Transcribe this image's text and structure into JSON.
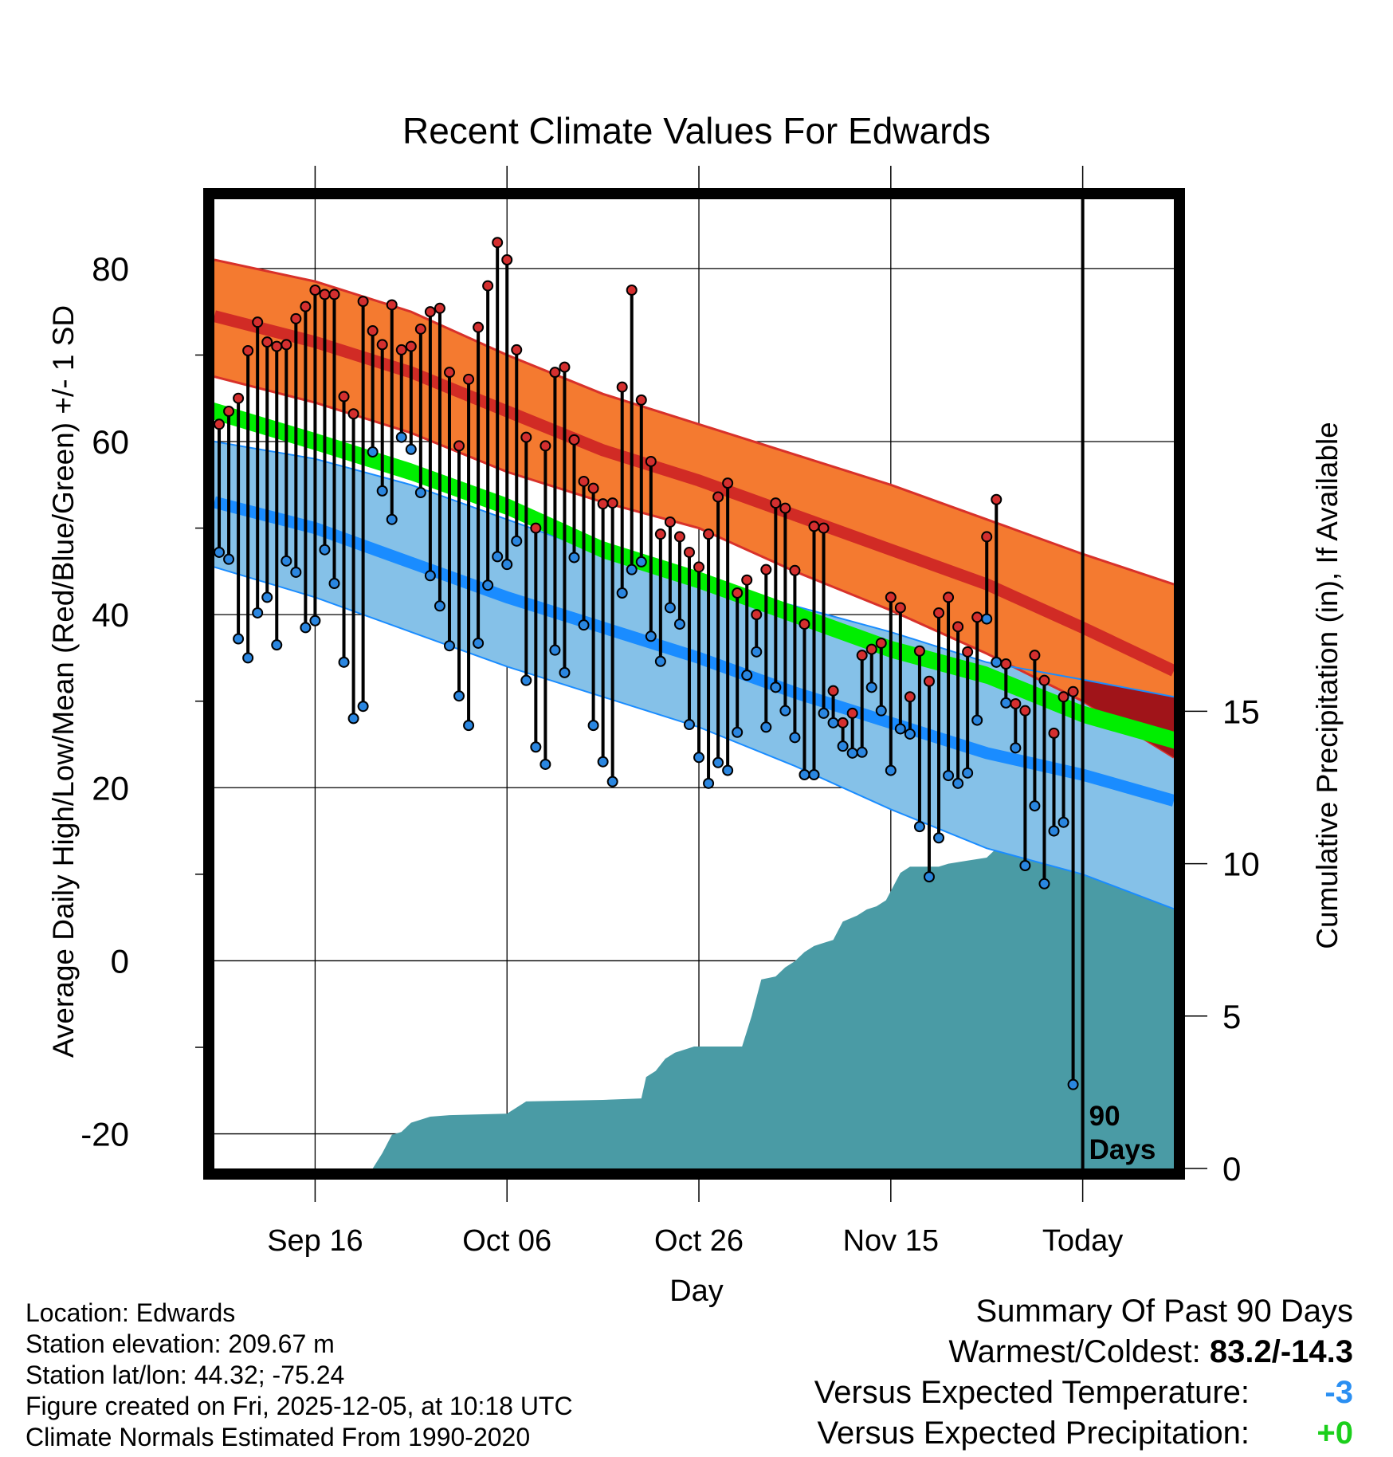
{
  "chart_data": {
    "type": "line",
    "title": "Recent Climate Values For Edwards",
    "xlabel": "Day",
    "ylabel": "Average Daily High/Low/Mean (Red/Blue/Green) +/- 1 SD",
    "y2label": "Cumulative Precipitation (in), If Available",
    "ylim": [
      -24,
      88
    ],
    "y2lim": [
      0,
      31.8
    ],
    "xlim": [
      -0.5,
      99.5
    ],
    "yticks": [
      -20,
      0,
      20,
      40,
      60,
      80
    ],
    "y2ticks": [
      0,
      5,
      10,
      15
    ],
    "xticks": [
      {
        "day": 10,
        "label": "Sep 16"
      },
      {
        "day": 30,
        "label": "Oct 06"
      },
      {
        "day": 50,
        "label": "Oct 26"
      },
      {
        "day": 70,
        "label": "Nov 15"
      },
      {
        "day": 90,
        "label": "Today"
      }
    ],
    "today_marker": {
      "day": 90,
      "label_line1": "90",
      "label_line2": "Days"
    },
    "normals": {
      "days": [
        -0.5,
        10,
        20,
        30,
        40,
        50,
        60,
        70,
        80,
        90,
        99.5
      ],
      "high_upper": [
        81,
        78.5,
        75,
        70,
        65.5,
        62,
        58.5,
        55,
        51,
        47,
        43.5
      ],
      "high_mean": [
        74.5,
        71.5,
        68,
        63.5,
        59,
        55.5,
        51.5,
        47.5,
        43.5,
        38.5,
        33.5
      ],
      "high_lower": [
        67.5,
        64.5,
        61,
        56.5,
        53,
        50,
        45,
        40.5,
        35.5,
        30,
        23.5
      ],
      "mean_upper": [
        64.5,
        61,
        57.5,
        53.5,
        48.5,
        45,
        41,
        37,
        34,
        29.5,
        26.5
      ],
      "mean_lower": [
        62.5,
        59,
        55.5,
        51.5,
        46.5,
        43,
        39,
        35,
        32,
        27.5,
        24.5
      ],
      "low_upper": [
        60,
        58,
        55,
        51,
        47,
        44,
        41,
        38,
        34.5,
        32.5,
        30.5
      ],
      "low_mean": [
        53,
        50,
        46,
        42,
        38.5,
        35,
        31,
        27.5,
        24,
        21.5,
        18.5
      ],
      "low_lower": [
        45.5,
        42,
        38,
        34,
        30.5,
        27,
        22.5,
        17.5,
        13,
        10,
        6
      ]
    },
    "daily_highs": [
      62,
      63.5,
      65,
      70.5,
      73.8,
      71.5,
      71,
      71.2,
      74.2,
      75.6,
      77.5,
      77,
      77,
      65.2,
      63.2,
      76.2,
      72.8,
      71.2,
      75.8,
      70.6,
      71,
      73,
      75,
      75.4,
      68,
      59.5,
      67.2,
      73.2,
      78,
      83,
      81,
      70.6,
      60.5,
      50,
      59.5,
      68,
      68.6,
      60.2,
      55.4,
      54.6,
      52.8,
      52.9,
      66.3,
      77.5,
      64.8,
      57.7,
      49.3,
      50.7,
      49,
      47.2,
      45.5,
      49.3,
      53.6,
      55.2,
      42.5,
      44,
      40,
      45.2,
      52.9,
      52.3,
      45.1,
      38.9,
      50.2,
      50,
      31.2,
      27.5,
      28.6,
      35.3,
      36,
      36.7,
      42,
      40.8,
      30.5,
      35.8,
      32.3,
      40.2,
      42,
      38.6,
      35.7,
      39.7,
      49,
      53.3,
      34.3,
      29.7,
      28.9,
      35.3,
      32.4,
      26.3,
      30.5,
      31.1
    ],
    "daily_lows": [
      47.2,
      46.4,
      37.2,
      35,
      40.2,
      42,
      36.5,
      46.2,
      44.9,
      38.5,
      39.3,
      47.5,
      43.6,
      34.5,
      28,
      29.4,
      58.8,
      54.3,
      51,
      60.5,
      59.1,
      54.1,
      44.5,
      41,
      36.4,
      30.6,
      27.2,
      36.7,
      43.4,
      46.7,
      45.8,
      48.5,
      32.4,
      24.7,
      22.7,
      35.9,
      33.3,
      46.6,
      38.8,
      27.2,
      23,
      20.7,
      42.5,
      45.2,
      46.1,
      37.5,
      34.6,
      40.8,
      38.9,
      27.3,
      23.5,
      20.5,
      22.9,
      22,
      26.4,
      33,
      35.7,
      27,
      31.6,
      28.9,
      25.8,
      21.5,
      21.5,
      28.6,
      27.5,
      24.8,
      24,
      24.1,
      31.6,
      28.9,
      22,
      26.8,
      26.2,
      15.5,
      9.7,
      14.2,
      21.4,
      20.5,
      21.7,
      27.8,
      39.5,
      34.5,
      29.8,
      24.6,
      11,
      17.9,
      8.9,
      15,
      16,
      -14.3
    ],
    "cumulative_precip": [
      [
        -0.5,
        0
      ],
      [
        16,
        0
      ],
      [
        17,
        0.5
      ],
      [
        18,
        1.1
      ],
      [
        19,
        1.2
      ],
      [
        20,
        1.5
      ],
      [
        22,
        1.7
      ],
      [
        24,
        1.75
      ],
      [
        30,
        1.8
      ],
      [
        31,
        2.0
      ],
      [
        32,
        2.2
      ],
      [
        40,
        2.25
      ],
      [
        44,
        2.3
      ],
      [
        44.5,
        3.0
      ],
      [
        45.5,
        3.2
      ],
      [
        46.5,
        3.6
      ],
      [
        47.5,
        3.8
      ],
      [
        48.5,
        3.9
      ],
      [
        49.5,
        4.0
      ],
      [
        53,
        4.0
      ],
      [
        54.5,
        4.0
      ],
      [
        55.5,
        5.0
      ],
      [
        56.5,
        6.2
      ],
      [
        58,
        6.3
      ],
      [
        59,
        6.6
      ],
      [
        60,
        6.8
      ],
      [
        61,
        7.1
      ],
      [
        62,
        7.3
      ],
      [
        63,
        7.4
      ],
      [
        64,
        7.5
      ],
      [
        65,
        8.1
      ],
      [
        66.5,
        8.3
      ],
      [
        67.5,
        8.5
      ],
      [
        68.5,
        8.6
      ],
      [
        69.5,
        8.8
      ],
      [
        70,
        9.1
      ],
      [
        70.5,
        9.4
      ],
      [
        71,
        9.7
      ],
      [
        72,
        9.9
      ],
      [
        75,
        9.9
      ],
      [
        76,
        10.0
      ],
      [
        78,
        10.1
      ],
      [
        80,
        10.2
      ],
      [
        81,
        10.5
      ],
      [
        82,
        10.8
      ],
      [
        83,
        11.0
      ],
      [
        85,
        11.2
      ],
      [
        86,
        11.4
      ],
      [
        87,
        11.6
      ],
      [
        88,
        11.8
      ],
      [
        89,
        11.9
      ],
      [
        90,
        11.9
      ],
      [
        99.5,
        11.9
      ]
    ]
  },
  "metadata": {
    "location": "Location: Edwards",
    "elevation": "Station elevation: 209.67 m",
    "latlon": "Station lat/lon: 44.32; -75.24",
    "created": "Figure created on Fri, 2025-12-05, at 10:18 UTC",
    "normals": "Climate Normals Estimated From 1990-2020"
  },
  "summary": {
    "title": "Summary Of Past 90 Days",
    "warmest_coldest_label": "Warmest/Coldest:",
    "warmest_coldest_value": "83.2/-14.3",
    "temp_label": "Versus Expected Temperature:",
    "temp_value": "-3",
    "precip_label": "Versus Expected Precipitation:",
    "precip_value": "+0"
  },
  "colors": {
    "high_band": "#f47a30",
    "high_mean": "#d12b25",
    "high_outline": "#d8312a",
    "mean_band": "#00ee00",
    "low_band": "#85c1e8",
    "low_mean": "#1a8cff",
    "low_outline": "#1a8cff",
    "overlap": "#a01419",
    "precip": "#4a9ba5",
    "high_dot": "#d42f2f",
    "low_dot": "#2a86e0",
    "temp_value": "#2a8ff2",
    "precip_value": "#1bcf1b"
  }
}
